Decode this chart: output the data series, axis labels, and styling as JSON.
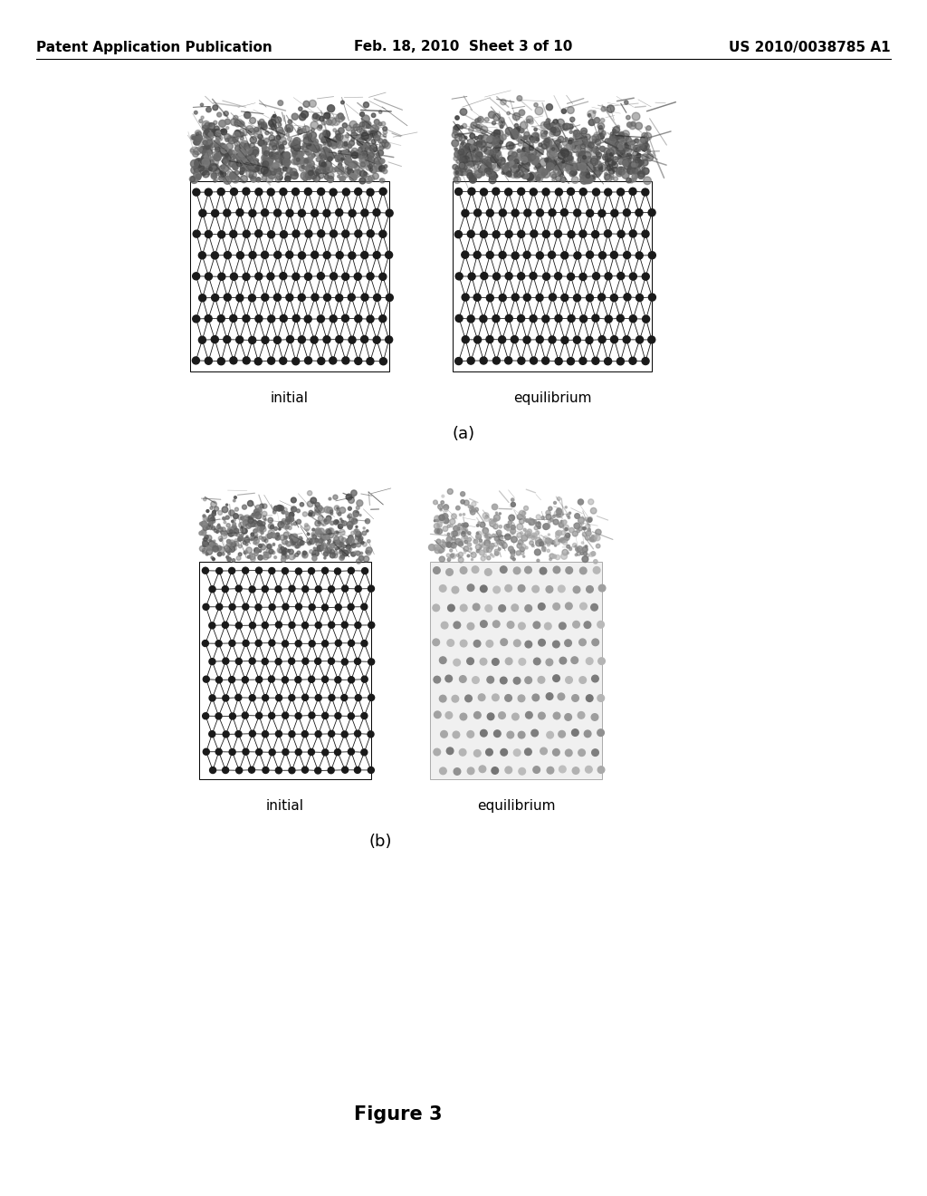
{
  "background_color": "#ffffff",
  "header_left": "Patent Application Publication",
  "header_mid": "Feb. 18, 2010  Sheet 3 of 10",
  "header_right": "US 2010/0038785 A1",
  "header_fontsize": 11,
  "figure_caption": "Figure 3",
  "figure_caption_fontsize": 15,
  "section_a_label": "(a)",
  "section_b_label": "(b)",
  "initial_label": "initial",
  "equilibrium_label": "equilibrium",
  "sub_label_fontsize": 11,
  "section_label_fontsize": 13
}
